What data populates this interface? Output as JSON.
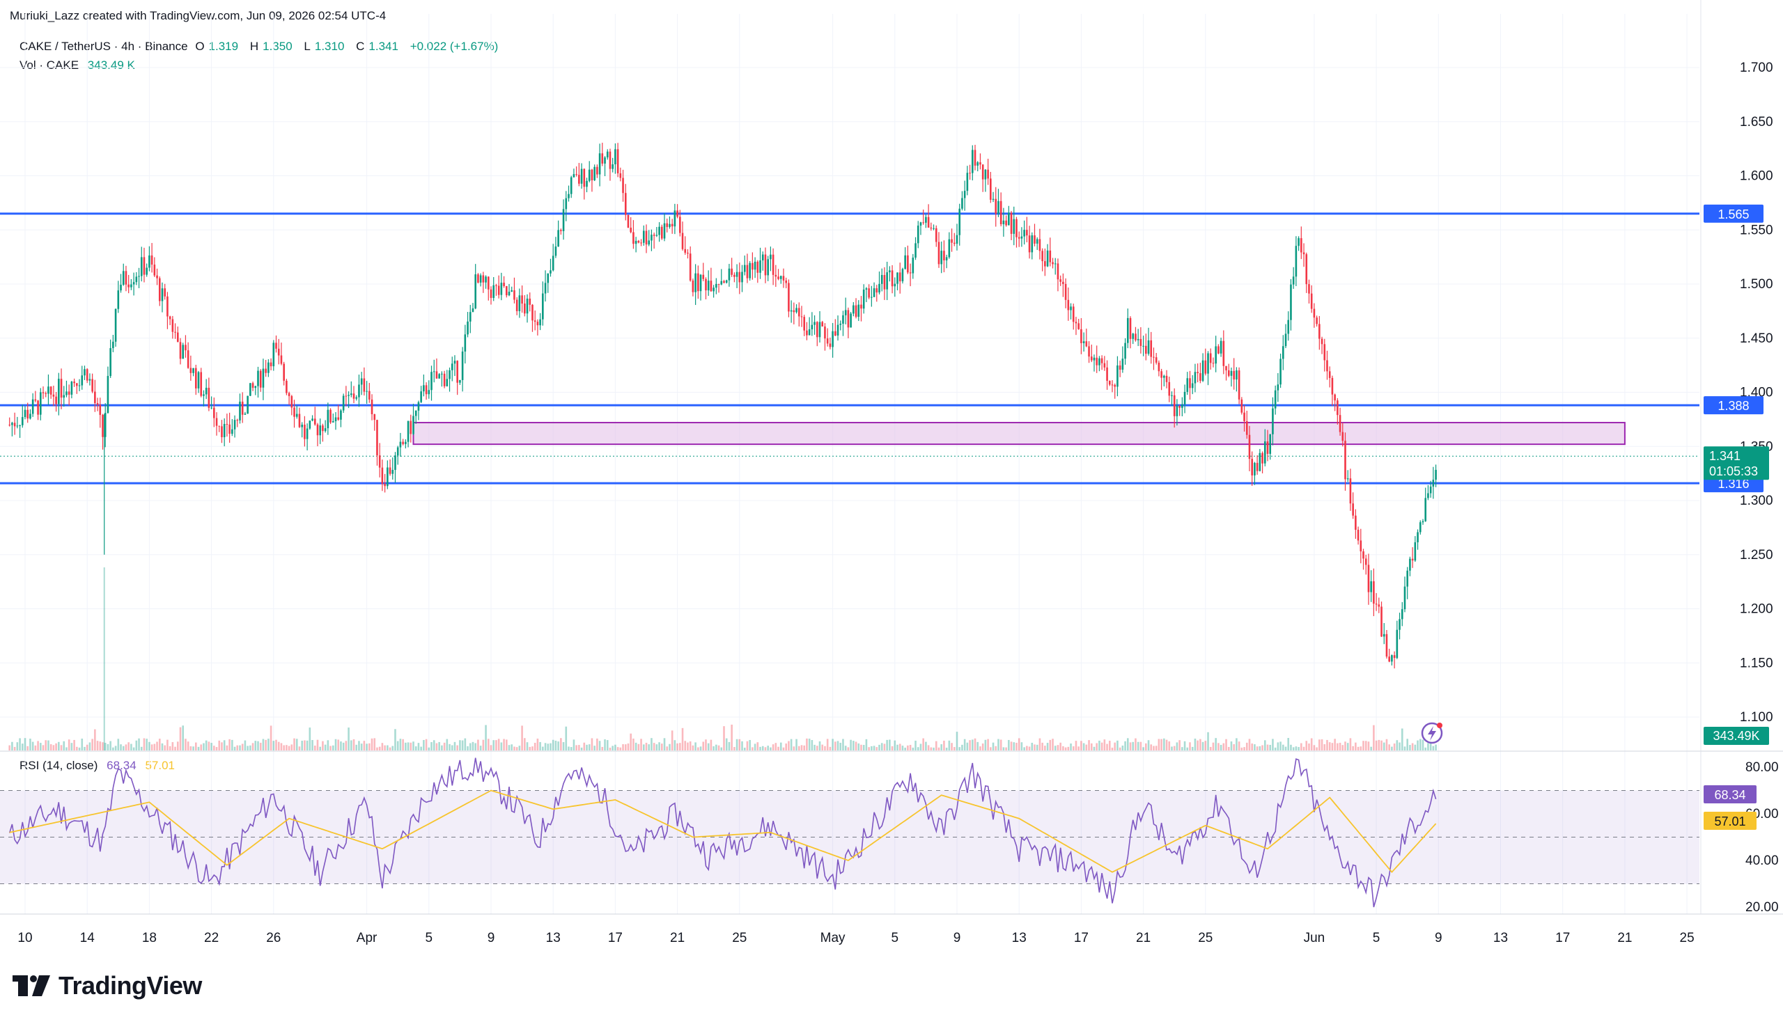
{
  "header": {
    "credit": "Muriuki_Lazz created with TradingView.com, Jun 09, 2026 02:54 UTC-4",
    "symbol": "CAKE / TetherUS · 4h · Binance",
    "open_label": "O",
    "open": "1.319",
    "high_label": "H",
    "high": "1.350",
    "low_label": "L",
    "low": "1.310",
    "close_label": "C",
    "close": "1.341",
    "change": "+0.022 (+1.67%)",
    "vol_label": "Vol · CAKE",
    "vol_value": "343.49 K"
  },
  "rsi": {
    "label": "RSI (14, close)",
    "rsi_value": "68.34",
    "ma_value": "57.01"
  },
  "brand": {
    "name": "TradingView"
  },
  "colors": {
    "up": "#089981",
    "down": "#f23645",
    "level_line": "#2962ff",
    "zone_fill": "#e1bee7",
    "zone_border": "#9c27b0",
    "rsi_line": "#7e57c2",
    "rsi_ma": "#f7c42d",
    "rsi_band": "#ede7f6"
  },
  "chart_data": {
    "type": "candlestick",
    "timeframe": "4h",
    "price_axis": {
      "ticks": [
        "1.700",
        "1.650",
        "1.600",
        "1.550",
        "1.500",
        "1.450",
        "1.400",
        "1.350",
        "1.300",
        "1.250",
        "1.200",
        "1.150",
        "1.100"
      ],
      "range": [
        1.085,
        1.725
      ]
    },
    "x_tick_labels": [
      "10",
      "14",
      "18",
      "22",
      "26",
      "Apr",
      "5",
      "9",
      "13",
      "17",
      "21",
      "25",
      "May",
      "5",
      "9",
      "13",
      "17",
      "21",
      "25",
      "Jun",
      "5",
      "9",
      "13",
      "17",
      "21",
      "25"
    ],
    "price_anchors": [
      {
        "date": "Mar 9",
        "price": 1.37
      },
      {
        "date": "Mar 12",
        "price": 1.4
      },
      {
        "date": "Mar 14",
        "price": 1.42
      },
      {
        "date": "Mar 15",
        "price": 1.36
      },
      {
        "date": "Mar 16",
        "price": 1.5
      },
      {
        "date": "Mar 18",
        "price": 1.52
      },
      {
        "date": "Mar 20",
        "price": 1.44
      },
      {
        "date": "Mar 23",
        "price": 1.36
      },
      {
        "date": "Mar 25",
        "price": 1.41
      },
      {
        "date": "Mar 26",
        "price": 1.44
      },
      {
        "date": "Mar 28",
        "price": 1.36
      },
      {
        "date": "Mar 30",
        "price": 1.38
      },
      {
        "date": "Apr 1",
        "price": 1.41
      },
      {
        "date": "Apr 2",
        "price": 1.32
      },
      {
        "date": "Apr 3",
        "price": 1.34
      },
      {
        "date": "Apr 5",
        "price": 1.41
      },
      {
        "date": "Apr 7",
        "price": 1.42
      },
      {
        "date": "Apr 8",
        "price": 1.5
      },
      {
        "date": "Apr 10",
        "price": 1.49
      },
      {
        "date": "Apr 12",
        "price": 1.47
      },
      {
        "date": "Apr 13",
        "price": 1.52
      },
      {
        "date": "Apr 14",
        "price": 1.59
      },
      {
        "date": "Apr 16",
        "price": 1.61
      },
      {
        "date": "Apr 17",
        "price": 1.62
      },
      {
        "date": "Apr 18",
        "price": 1.54
      },
      {
        "date": "Apr 20",
        "price": 1.55
      },
      {
        "date": "Apr 21",
        "price": 1.56
      },
      {
        "date": "Apr 22",
        "price": 1.5
      },
      {
        "date": "Apr 25",
        "price": 1.51
      },
      {
        "date": "Apr 27",
        "price": 1.52
      },
      {
        "date": "Apr 29",
        "price": 1.46
      },
      {
        "date": "May 1",
        "price": 1.45
      },
      {
        "date": "May 3",
        "price": 1.49
      },
      {
        "date": "May 6",
        "price": 1.52
      },
      {
        "date": "May 7",
        "price": 1.57
      },
      {
        "date": "May 8",
        "price": 1.52
      },
      {
        "date": "May 9",
        "price": 1.55
      },
      {
        "date": "May 10",
        "price": 1.62
      },
      {
        "date": "May 12",
        "price": 1.56
      },
      {
        "date": "May 13",
        "price": 1.55
      },
      {
        "date": "May 15",
        "price": 1.52
      },
      {
        "date": "May 17",
        "price": 1.45
      },
      {
        "date": "May 19",
        "price": 1.4
      },
      {
        "date": "May 20",
        "price": 1.46
      },
      {
        "date": "May 22",
        "price": 1.43
      },
      {
        "date": "May 23",
        "price": 1.38
      },
      {
        "date": "May 24",
        "price": 1.41
      },
      {
        "date": "May 26",
        "price": 1.44
      },
      {
        "date": "May 27",
        "price": 1.41
      },
      {
        "date": "May 28",
        "price": 1.33
      },
      {
        "date": "May 29",
        "price": 1.35
      },
      {
        "date": "May 30",
        "price": 1.44
      },
      {
        "date": "May 31",
        "price": 1.55
      },
      {
        "date": "Jun 1",
        "price": 1.47
      },
      {
        "date": "Jun 2",
        "price": 1.42
      },
      {
        "date": "Jun 3",
        "price": 1.33
      },
      {
        "date": "Jun 4",
        "price": 1.25
      },
      {
        "date": "Jun 5",
        "price": 1.2
      },
      {
        "date": "Jun 6",
        "price": 1.15
      },
      {
        "date": "Jun 7",
        "price": 1.23
      },
      {
        "date": "Jun 8",
        "price": 1.29
      },
      {
        "date": "Jun 9",
        "price": 1.341
      }
    ],
    "horizontal_levels": [
      {
        "price": 1.565,
        "label": "1.565"
      },
      {
        "price": 1.388,
        "label": "1.388"
      },
      {
        "price": 1.316,
        "label": "1.316"
      }
    ],
    "zone": {
      "price_top": 1.372,
      "price_bottom": 1.352,
      "from": "Apr 4",
      "to": "Jun 21"
    },
    "last_price": {
      "label": "1.341",
      "countdown": "01:05:33"
    },
    "volume": {
      "last_label": "343.49K"
    },
    "rsi_axis": {
      "ticks": [
        "80.00",
        "60.00",
        "40.00",
        "20.00"
      ],
      "range": [
        15,
        86
      ],
      "bands": [
        30,
        70
      ],
      "mid": 50
    },
    "rsi_anchors": [
      {
        "date": "Mar 9",
        "value": 50
      },
      {
        "date": "Mar 12",
        "value": 62
      },
      {
        "date": "Mar 15",
        "value": 48
      },
      {
        "date": "Mar 16",
        "value": 78
      },
      {
        "date": "Mar 18",
        "value": 62
      },
      {
        "date": "Mar 22",
        "value": 30
      },
      {
        "date": "Mar 26",
        "value": 68
      },
      {
        "date": "Mar 29",
        "value": 35
      },
      {
        "date": "Apr 1",
        "value": 65
      },
      {
        "date": "Apr 2",
        "value": 32
      },
      {
        "date": "Apr 5",
        "value": 70
      },
      {
        "date": "Apr 8",
        "value": 82
      },
      {
        "date": "Apr 11",
        "value": 60
      },
      {
        "date": "Apr 12",
        "value": 48
      },
      {
        "date": "Apr 14",
        "value": 78
      },
      {
        "date": "Apr 16",
        "value": 70
      },
      {
        "date": "Apr 18",
        "value": 42
      },
      {
        "date": "Apr 21",
        "value": 60
      },
      {
        "date": "Apr 23",
        "value": 42
      },
      {
        "date": "Apr 27",
        "value": 55
      },
      {
        "date": "May 1",
        "value": 32
      },
      {
        "date": "May 4",
        "value": 58
      },
      {
        "date": "May 6",
        "value": 76
      },
      {
        "date": "May 8",
        "value": 52
      },
      {
        "date": "May 10",
        "value": 78
      },
      {
        "date": "May 13",
        "value": 45
      },
      {
        "date": "May 17",
        "value": 38
      },
      {
        "date": "May 19",
        "value": 25
      },
      {
        "date": "May 21",
        "value": 65
      },
      {
        "date": "May 23",
        "value": 40
      },
      {
        "date": "May 26",
        "value": 65
      },
      {
        "date": "May 28",
        "value": 32
      },
      {
        "date": "May 31",
        "value": 82
      },
      {
        "date": "Jun 2",
        "value": 48
      },
      {
        "date": "Jun 5",
        "value": 24
      },
      {
        "date": "Jun 7",
        "value": 52
      },
      {
        "date": "Jun 9",
        "value": 68.34
      }
    ],
    "rsi_ma_anchors": [
      {
        "date": "Mar 9",
        "value": 52
      },
      {
        "date": "Mar 18",
        "value": 65
      },
      {
        "date": "Mar 23",
        "value": 38
      },
      {
        "date": "Mar 27",
        "value": 58
      },
      {
        "date": "Apr 2",
        "value": 45
      },
      {
        "date": "Apr 9",
        "value": 70
      },
      {
        "date": "Apr 13",
        "value": 62
      },
      {
        "date": "Apr 17",
        "value": 66
      },
      {
        "date": "Apr 22",
        "value": 50
      },
      {
        "date": "Apr 27",
        "value": 52
      },
      {
        "date": "May 2",
        "value": 40
      },
      {
        "date": "May 8",
        "value": 68
      },
      {
        "date": "May 13",
        "value": 58
      },
      {
        "date": "May 19",
        "value": 35
      },
      {
        "date": "May 25",
        "value": 55
      },
      {
        "date": "May 29",
        "value": 45
      },
      {
        "date": "Jun 2",
        "value": 67
      },
      {
        "date": "Jun 6",
        "value": 35
      },
      {
        "date": "Jun 9",
        "value": 57.01
      }
    ]
  }
}
